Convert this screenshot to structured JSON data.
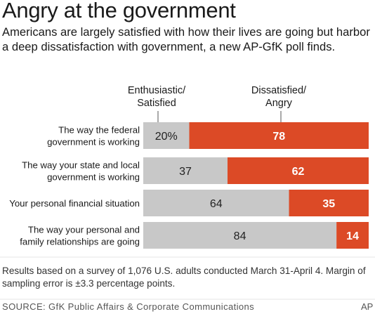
{
  "title": "Angry at the government",
  "subtitle": "Americans are largely satisfied with how their lives are going but harbor a deep dissatisfaction with government, a new AP-GfK poll finds.",
  "column_headers": {
    "left": [
      "Enthusiastic/",
      "Satisfied"
    ],
    "right": [
      "Dissatisfied/",
      "Angry"
    ]
  },
  "colors": {
    "satisfied": "#c8c8c8",
    "angry": "#dc4a26",
    "angry_text": "#ffffff",
    "satisfied_text": "#222222"
  },
  "chart_data": {
    "type": "bar",
    "orientation": "horizontal",
    "stacked": true,
    "categories": [
      [
        "The way the federal",
        "government is working"
      ],
      [
        "The way your state and local",
        "government is working"
      ],
      [
        "Your personal financial situation"
      ],
      [
        "The way your personal and",
        "family relationships are going"
      ]
    ],
    "series": [
      {
        "name": "Enthusiastic/ Satisfied",
        "values": [
          20,
          37,
          64,
          84
        ],
        "labels": [
          "20%",
          "37",
          "64",
          "84"
        ]
      },
      {
        "name": "Dissatisfied/ Angry",
        "values": [
          78,
          62,
          35,
          14
        ],
        "labels": [
          "78",
          "62",
          "35",
          "14"
        ]
      }
    ],
    "xlim": [
      0,
      100
    ]
  },
  "footnote": "Results based on a survey of 1,076 U.S. adults conducted March 31-April 4. Margin of sampling error is ±3.3 percentage points.",
  "source": "SOURCE: GfK Public Affairs & Corporate Communications",
  "credit": "AP"
}
